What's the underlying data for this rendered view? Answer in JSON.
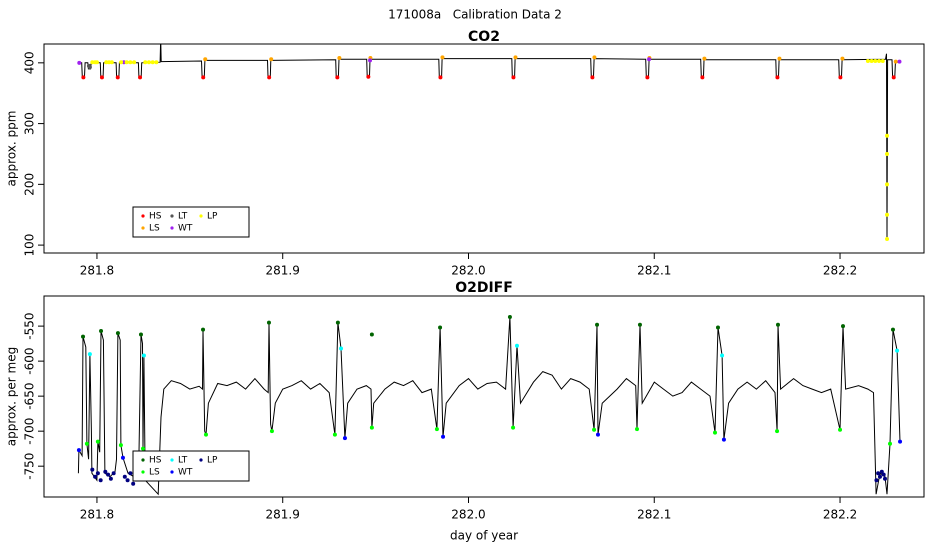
{
  "title": "171008a   Calibration Data 2",
  "chart_data": [
    {
      "type": "line",
      "title": "CO2",
      "ylabel": "approx. ppm",
      "xlim": [
        281.7715,
        282.2452
      ],
      "ylim": [
        87,
        431
      ],
      "xticks": [
        281.8,
        281.9,
        {
          "value": 282,
          "label": "282.0"
        },
        282.1,
        282.2
      ],
      "yticks": [
        100,
        200,
        300,
        400
      ],
      "legend": "bottom-left",
      "line": {
        "color": "#000000",
        "x": [
          281.79,
          281.7918,
          281.7921,
          281.7933,
          281.7936,
          281.7951,
          281.7954,
          281.7966,
          281.7969,
          281.8018,
          281.8021,
          281.8033,
          281.8036,
          281.8103,
          281.8106,
          281.8118,
          281.8121,
          281.8223,
          281.8226,
          281.8238,
          281.8241,
          281.834,
          281.8343,
          281.8346,
          281.8563,
          281.8566,
          281.8578,
          281.8581,
          281.8918,
          281.8921,
          281.8933,
          281.8936,
          281.9285,
          281.9288,
          281.93,
          281.9303,
          281.9452,
          281.9455,
          281.9467,
          281.947,
          281.984,
          281.9843,
          281.9855,
          281.9858,
          282.0233,
          282.0236,
          282.0248,
          282.0251,
          282.0658,
          282.0661,
          282.0673,
          282.0676,
          282.0954,
          282.0957,
          282.0969,
          282.0972,
          282.125,
          282.1253,
          282.1265,
          282.1268,
          282.1654,
          282.1657,
          282.1669,
          282.1672,
          282.1993,
          282.1996,
          282.2008,
          282.2011,
          282.2245,
          282.225,
          282.2253,
          282.2256,
          282.228,
          282.2283,
          282.2295,
          282.2298,
          282.232
        ],
        "values": [
          400,
          400,
          377,
          377,
          400,
          400,
          390,
          390,
          400,
          400,
          377,
          377,
          400,
          400,
          377,
          377,
          400,
          400,
          377,
          377,
          400,
          401,
          440,
          402,
          403,
          377,
          377,
          404,
          404,
          377,
          377,
          404,
          405,
          377,
          377,
          406,
          406,
          378,
          378,
          406,
          406,
          377,
          377,
          407,
          407,
          377,
          377,
          407,
          407,
          377,
          377,
          407,
          406,
          377,
          377,
          406,
          406,
          377,
          377,
          405,
          405,
          377,
          377,
          405,
          405,
          377,
          377,
          405,
          406,
          415,
          110,
          405,
          405,
          377,
          377,
          400,
          402
        ]
      },
      "series": [
        {
          "name": "HS",
          "color": "#ff0000",
          "x": [
            281.7927,
            281.8027,
            281.8112,
            281.8232,
            281.8572,
            281.8927,
            281.9294,
            281.9461,
            281.9849,
            282.0242,
            282.0667,
            282.0963,
            282.1259,
            282.1663,
            282.2002,
            282.2289
          ],
          "values": [
            376,
            376,
            376,
            376,
            376,
            376,
            376,
            377,
            376,
            376,
            376,
            376,
            376,
            376,
            376,
            376
          ]
        },
        {
          "name": "LS",
          "color": "#ffa500",
          "x": [
            281.8583,
            281.8938,
            281.9305,
            281.9472,
            281.986,
            282.0253,
            282.0678,
            282.0974,
            282.127,
            282.1674,
            282.2013,
            282.23
          ],
          "values": [
            406,
            406,
            408,
            408,
            409,
            409,
            409,
            408,
            407,
            407,
            407,
            402
          ]
        },
        {
          "name": "LT",
          "color": "#555555",
          "x": [
            281.7957,
            281.7962
          ],
          "values": [
            395,
            393
          ]
        },
        {
          "name": "WT",
          "color": "#a020f0",
          "x": [
            281.7905,
            281.8145,
            281.947,
            282.0972,
            282.232
          ],
          "values": [
            400,
            401,
            404,
            406,
            402
          ]
        },
        {
          "name": "LP",
          "color": "#ffff00",
          "x": [
            281.7975,
            281.799,
            281.8,
            281.805,
            281.8065,
            281.808,
            281.813,
            281.816,
            281.818,
            281.82,
            281.826,
            281.828,
            281.83,
            281.832,
            282.215,
            282.217,
            282.219,
            282.221,
            282.223,
            282.2253,
            282.2253,
            282.2253,
            282.2253,
            282.2253
          ],
          "values": [
            401,
            401,
            401,
            401,
            401,
            401,
            401,
            401,
            401,
            401,
            401,
            401,
            401,
            401,
            403,
            403,
            403,
            403,
            403,
            280,
            250,
            200,
            150,
            110
          ]
        }
      ]
    },
    {
      "type": "line",
      "title": "O2DIFF",
      "ylabel": "approx. per meg",
      "xlabel": "day of year",
      "xlim": [
        281.7715,
        282.2452
      ],
      "ylim": [
        -794,
        -507
      ],
      "xticks": [
        281.8,
        281.9,
        {
          "value": 282,
          "label": "282.0"
        },
        282.1,
        282.2
      ],
      "yticks": [
        -750,
        -700,
        -650,
        -600,
        -550
      ],
      "legend": "bottom-left",
      "line": {
        "color": "#000000",
        "x": [
          281.79,
          281.7903,
          281.792,
          281.7925,
          281.794,
          281.7946,
          281.7955,
          281.7962,
          281.797,
          281.7973,
          281.8,
          281.8005,
          281.8015,
          281.8022,
          281.8035,
          281.8043,
          281.807,
          281.8097,
          281.8105,
          281.8113,
          281.8125,
          281.8129,
          281.814,
          281.8167,
          281.8199,
          281.8225,
          281.8237,
          281.8245,
          281.8248,
          281.8253,
          281.826,
          281.833,
          281.8345,
          281.836,
          281.84,
          281.845,
          281.85,
          281.855,
          281.8568,
          281.8571,
          281.858,
          281.8587,
          281.86,
          281.865,
          281.87,
          281.875,
          281.88,
          281.885,
          281.89,
          281.8922,
          281.8926,
          281.8935,
          281.8942,
          281.896,
          281.9,
          281.905,
          281.91,
          281.915,
          281.92,
          281.925,
          281.9281,
          281.9297,
          281.9314,
          281.9335,
          281.935,
          281.94,
          281.945,
          281.9475,
          281.948,
          281.949,
          281.955,
          281.96,
          281.965,
          281.97,
          281.975,
          281.98,
          281.983,
          281.9847,
          281.9863,
          281.988,
          281.995,
          282.0,
          282.005,
          282.01,
          282.015,
          282.02,
          282.0223,
          282.024,
          282.0261,
          282.028,
          282.035,
          282.04,
          282.045,
          282.05,
          282.055,
          282.06,
          282.065,
          282.0676,
          282.0692,
          282.0697,
          282.072,
          282.08,
          282.085,
          282.09,
          282.0907,
          282.0923,
          282.0935,
          282.1,
          282.105,
          282.11,
          282.115,
          282.12,
          282.125,
          282.13,
          282.1327,
          282.1343,
          282.1365,
          282.1375,
          282.14,
          282.145,
          282.15,
          282.155,
          282.16,
          282.165,
          282.1661,
          282.1666,
          282.168,
          282.175,
          282.18,
          282.185,
          282.19,
          282.195,
          282.2,
          282.2016,
          282.203,
          282.21,
          282.215,
          282.218,
          282.2194,
          282.2215,
          282.2242,
          282.2253,
          282.2269,
          282.2285,
          282.2307,
          282.2323
        ],
        "values": [
          -760,
          -727,
          -735,
          -565,
          -580,
          -718,
          -740,
          -590,
          -700,
          -760,
          -770,
          -715,
          -730,
          -557,
          -570,
          -760,
          -765,
          -758,
          -740,
          -560,
          -570,
          -720,
          -738,
          -760,
          -765,
          -755,
          -562,
          -575,
          -725,
          -592,
          -770,
          -790,
          -680,
          -640,
          -628,
          -632,
          -640,
          -636,
          -640,
          -555,
          -700,
          -705,
          -660,
          -632,
          -635,
          -630,
          -640,
          -625,
          -640,
          -645,
          -545,
          -690,
          -700,
          -660,
          -640,
          -635,
          -628,
          -640,
          -632,
          -645,
          -705,
          -545,
          -582,
          -710,
          -660,
          -640,
          -635,
          -640,
          -695,
          -660,
          -640,
          -630,
          -635,
          -628,
          -645,
          -640,
          -697,
          -552,
          -708,
          -660,
          -635,
          -625,
          -640,
          -632,
          -630,
          -640,
          -537,
          -695,
          -578,
          -660,
          -630,
          -615,
          -620,
          -640,
          -625,
          -630,
          -640,
          -698,
          -548,
          -705,
          -660,
          -640,
          -625,
          -635,
          -697,
          -548,
          -660,
          -630,
          -640,
          -650,
          -645,
          -630,
          -640,
          -650,
          -702,
          -552,
          -592,
          -712,
          -660,
          -640,
          -630,
          -640,
          -628,
          -645,
          -700,
          -548,
          -640,
          -625,
          -635,
          -640,
          -645,
          -640,
          -698,
          -550,
          -640,
          -635,
          -640,
          -645,
          -790,
          -760,
          -765,
          -790,
          -718,
          -555,
          -585,
          -715
        ]
      },
      "series": [
        {
          "name": "HS",
          "color": "#006400",
          "x": [
            281.7925,
            281.8022,
            281.8113,
            281.8237,
            281.8571,
            281.8926,
            281.9297,
            281.948,
            281.9847,
            282.0223,
            282.0692,
            282.0923,
            282.1343,
            282.1666,
            282.2016,
            282.2285
          ],
          "values": [
            -565,
            -557,
            -560,
            -562,
            -555,
            -545,
            -545,
            -562,
            -552,
            -537,
            -548,
            -548,
            -552,
            -548,
            -550,
            -555
          ]
        },
        {
          "name": "LS",
          "color": "#00ff00",
          "x": [
            281.7946,
            281.8005,
            281.8129,
            281.8248,
            281.8587,
            281.8942,
            281.9281,
            281.948,
            281.983,
            282.024,
            282.0676,
            282.0907,
            282.1327,
            282.1661,
            282.2,
            282.2269
          ],
          "values": [
            -718,
            -715,
            -720,
            -725,
            -705,
            -700,
            -705,
            -695,
            -697,
            -695,
            -698,
            -697,
            -702,
            -700,
            -698,
            -718
          ]
        },
        {
          "name": "LT",
          "color": "#00ffff",
          "x": [
            281.7962,
            281.8253,
            281.9314,
            282.0261,
            282.1365,
            282.2307
          ],
          "values": [
            -590,
            -592,
            -582,
            -578,
            -592,
            -585
          ]
        },
        {
          "name": "WT",
          "color": "#0000ff",
          "x": [
            281.7903,
            281.814,
            281.9335,
            281.9863,
            282.0697,
            282.1375,
            282.2323
          ],
          "values": [
            -727,
            -738,
            -710,
            -708,
            -705,
            -712,
            -715
          ]
        },
        {
          "name": "LP",
          "color": "#000080",
          "x": [
            281.7975,
            281.799,
            281.8005,
            281.802,
            281.8045,
            281.806,
            281.8075,
            281.809,
            281.815,
            281.8165,
            281.818,
            281.8195,
            281.821,
            282.2196,
            282.2205,
            282.2215,
            282.2225,
            282.2235,
            282.2242
          ],
          "values": [
            -755,
            -765,
            -760,
            -770,
            -758,
            -762,
            -768,
            -760,
            -765,
            -770,
            -760,
            -775,
            -765,
            -770,
            -760,
            -765,
            -758,
            -762,
            -768
          ]
        }
      ]
    }
  ]
}
